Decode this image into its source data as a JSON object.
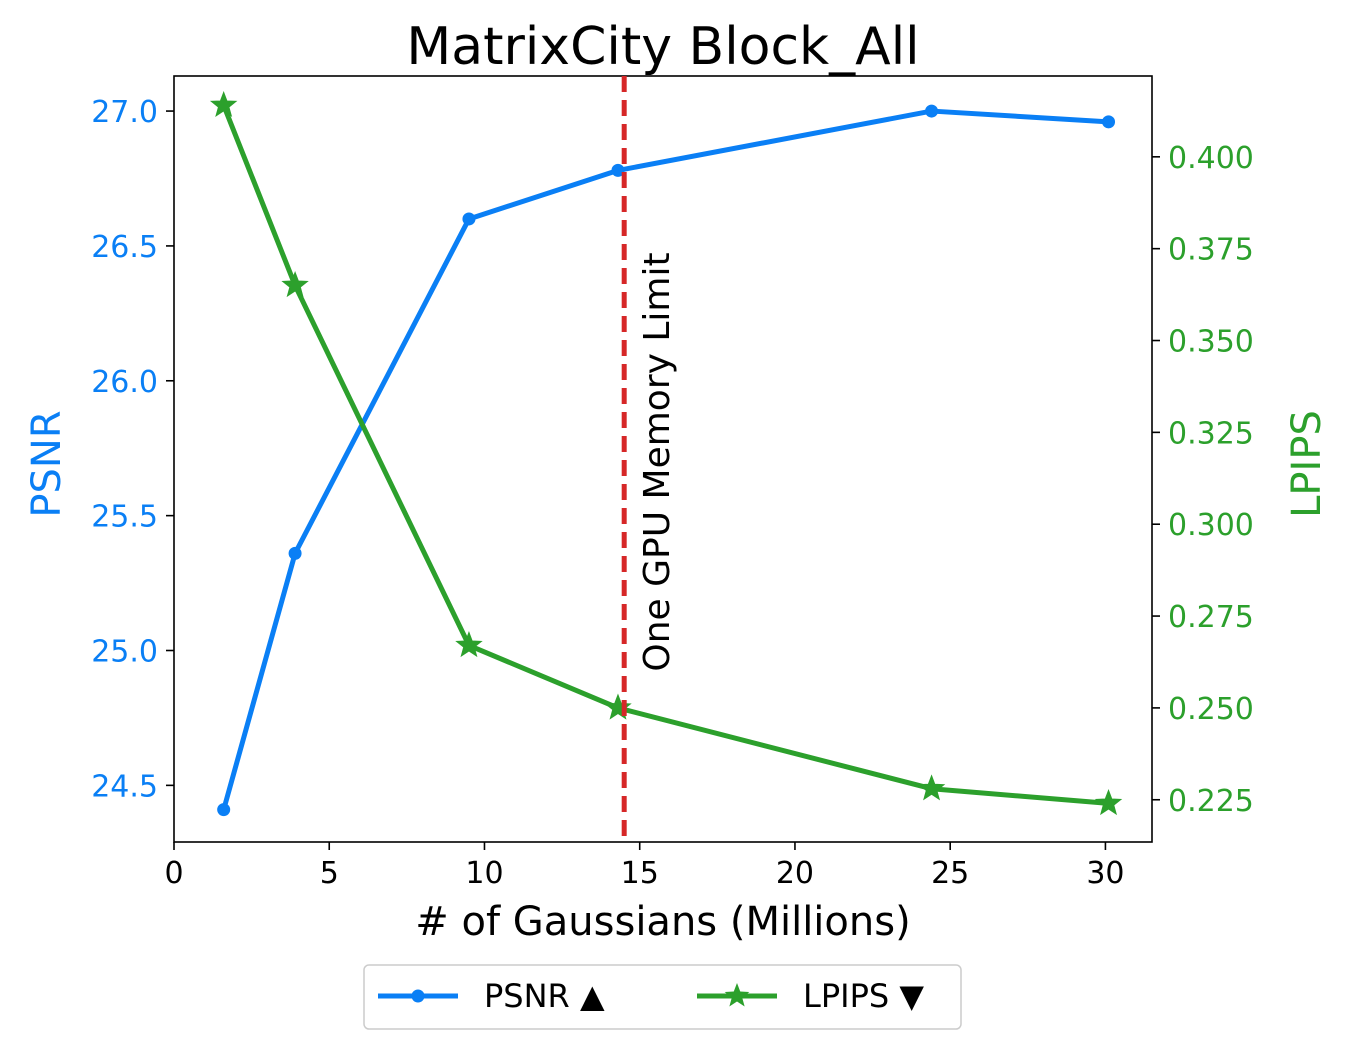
{
  "chart_data": {
    "type": "line",
    "title": "MatrixCity Block_All",
    "xlabel": "# of Gaussians (Millions)",
    "ylabel_left": "PSNR",
    "ylabel_right": "LPIPS",
    "xlim": [
      0,
      31.5
    ],
    "ylim_left": [
      24.29,
      27.13
    ],
    "ylim_right": [
      0.2135,
      0.422
    ],
    "x_ticks": [
      0,
      5,
      10,
      15,
      20,
      25,
      30
    ],
    "y_left_ticks": [
      "24.5",
      "25.0",
      "25.5",
      "26.0",
      "26.5",
      "27.0"
    ],
    "y_right_ticks": [
      "0.225",
      "0.250",
      "0.275",
      "0.300",
      "0.325",
      "0.350",
      "0.375",
      "0.400"
    ],
    "grid": false,
    "legend_position": "bottom-center",
    "series": [
      {
        "name": "PSNR ▲",
        "axis": "left",
        "marker": "circle",
        "color": "#0a7ff5",
        "x": [
          1.6,
          3.9,
          9.5,
          14.3,
          24.4,
          30.1
        ],
        "y": [
          24.41,
          25.36,
          26.6,
          26.78,
          27.0,
          26.96
        ]
      },
      {
        "name": "LPIPS ▼",
        "axis": "right",
        "marker": "star",
        "color": "#2ca02c",
        "x": [
          1.6,
          3.9,
          9.5,
          14.3,
          24.4,
          30.1
        ],
        "y": [
          0.414,
          0.365,
          0.267,
          0.25,
          0.228,
          0.224
        ]
      }
    ],
    "annotations": [
      {
        "type": "vline",
        "x": 14.5,
        "color": "#d62728",
        "style": "dashed",
        "label": "One GPU Memory Limit"
      }
    ]
  }
}
